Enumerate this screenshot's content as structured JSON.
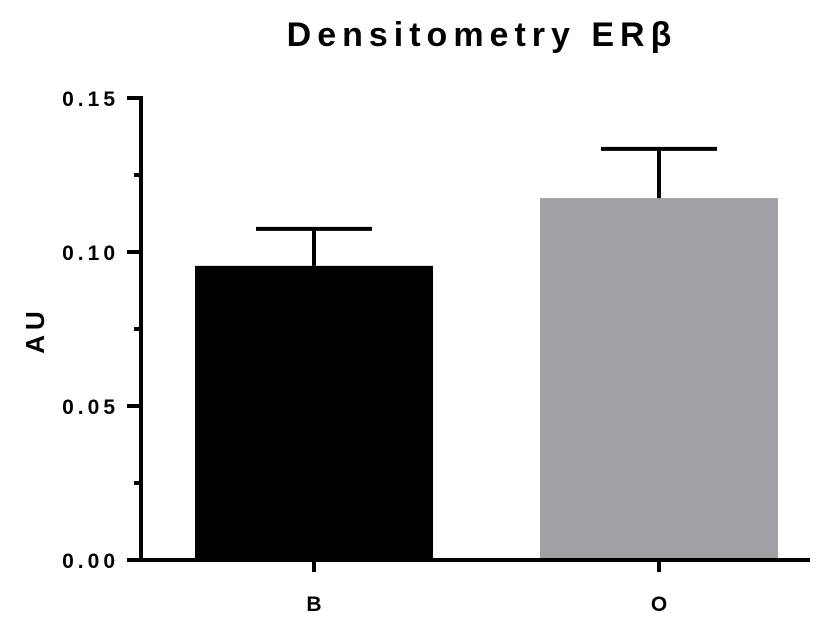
{
  "chart_data": {
    "type": "bar",
    "title": "Densitometry ERβ",
    "xlabel": "",
    "ylabel": "AU",
    "categories": [
      "B",
      "O"
    ],
    "values": [
      0.0955,
      0.1175
    ],
    "error_upper": [
      0.1075,
      0.1335
    ],
    "ylim": [
      0,
      0.15
    ],
    "yticks": [
      0.0,
      0.05,
      0.1,
      0.15
    ],
    "ytick_labels": [
      "0.00",
      "0.05",
      "0.10",
      "0.15"
    ],
    "minor_ticks": [
      0.025,
      0.075,
      0.125
    ],
    "grid": false,
    "bar_colors": [
      "#000000",
      "#a1a0a5"
    ]
  }
}
